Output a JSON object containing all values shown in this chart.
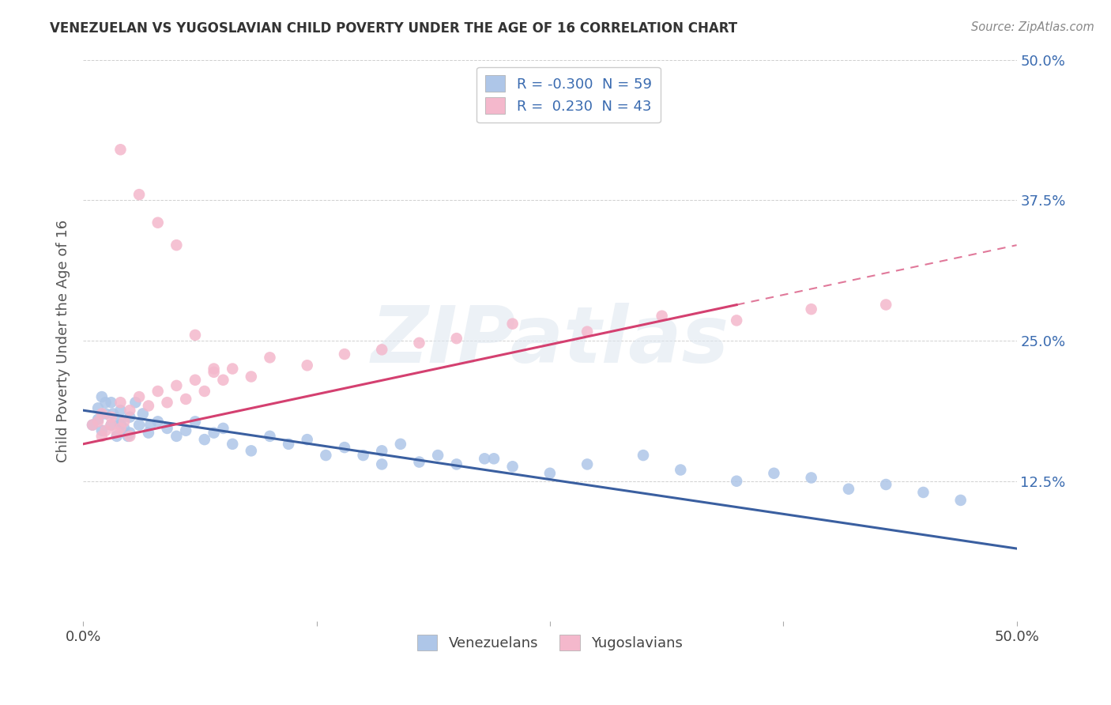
{
  "title": "VENEZUELAN VS YUGOSLAVIAN CHILD POVERTY UNDER THE AGE OF 16 CORRELATION CHART",
  "source": "Source: ZipAtlas.com",
  "ylabel": "Child Poverty Under the Age of 16",
  "xlim": [
    0.0,
    0.5
  ],
  "ylim": [
    0.0,
    0.5
  ],
  "xticks": [
    0.0,
    0.125,
    0.25,
    0.375,
    0.5
  ],
  "xtick_labels": [
    "0.0%",
    "",
    "",
    "",
    "50.0%"
  ],
  "yticks": [
    0.0,
    0.125,
    0.25,
    0.375,
    0.5
  ],
  "ytick_labels_right": [
    "",
    "12.5%",
    "25.0%",
    "37.5%",
    "50.0%"
  ],
  "venezuelan_R": -0.3,
  "venezuelan_N": 59,
  "yugoslavian_R": 0.23,
  "yugoslavian_N": 43,
  "venezuelan_color": "#aec6e8",
  "yugoslavian_color": "#f4b8cc",
  "trend_blue": "#3a5fa0",
  "trend_pink": "#d44070",
  "watermark": "ZIPatlas",
  "background_color": "#ffffff",
  "venezuelan_x": [
    0.005,
    0.008,
    0.01,
    0.012,
    0.015,
    0.018,
    0.02,
    0.022,
    0.025,
    0.008,
    0.012,
    0.016,
    0.02,
    0.024,
    0.028,
    0.032,
    0.036,
    0.01,
    0.015,
    0.02,
    0.025,
    0.03,
    0.035,
    0.04,
    0.045,
    0.05,
    0.055,
    0.06,
    0.065,
    0.07,
    0.075,
    0.08,
    0.09,
    0.1,
    0.11,
    0.12,
    0.13,
    0.14,
    0.15,
    0.16,
    0.17,
    0.18,
    0.19,
    0.2,
    0.215,
    0.23,
    0.25,
    0.27,
    0.3,
    0.32,
    0.35,
    0.37,
    0.39,
    0.41,
    0.43,
    0.45,
    0.47,
    0.22,
    0.16
  ],
  "venezuelan_y": [
    0.175,
    0.18,
    0.17,
    0.185,
    0.175,
    0.165,
    0.178,
    0.172,
    0.168,
    0.19,
    0.195,
    0.185,
    0.175,
    0.165,
    0.195,
    0.185,
    0.175,
    0.2,
    0.195,
    0.188,
    0.182,
    0.175,
    0.168,
    0.178,
    0.172,
    0.165,
    0.17,
    0.178,
    0.162,
    0.168,
    0.172,
    0.158,
    0.152,
    0.165,
    0.158,
    0.162,
    0.148,
    0.155,
    0.148,
    0.152,
    0.158,
    0.142,
    0.148,
    0.14,
    0.145,
    0.138,
    0.132,
    0.14,
    0.148,
    0.135,
    0.125,
    0.132,
    0.128,
    0.118,
    0.122,
    0.115,
    0.108,
    0.145,
    0.14
  ],
  "yugoslavian_x": [
    0.005,
    0.008,
    0.01,
    0.012,
    0.015,
    0.018,
    0.02,
    0.022,
    0.025,
    0.01,
    0.015,
    0.02,
    0.025,
    0.03,
    0.035,
    0.04,
    0.045,
    0.05,
    0.055,
    0.06,
    0.065,
    0.07,
    0.075,
    0.08,
    0.09,
    0.1,
    0.12,
    0.14,
    0.16,
    0.18,
    0.2,
    0.23,
    0.27,
    0.31,
    0.35,
    0.39,
    0.43,
    0.02,
    0.03,
    0.04,
    0.05,
    0.06,
    0.07
  ],
  "yugoslavian_y": [
    0.175,
    0.178,
    0.165,
    0.17,
    0.175,
    0.168,
    0.172,
    0.178,
    0.165,
    0.185,
    0.182,
    0.195,
    0.188,
    0.2,
    0.192,
    0.205,
    0.195,
    0.21,
    0.198,
    0.215,
    0.205,
    0.222,
    0.215,
    0.225,
    0.218,
    0.235,
    0.228,
    0.238,
    0.242,
    0.248,
    0.252,
    0.265,
    0.258,
    0.272,
    0.268,
    0.278,
    0.282,
    0.42,
    0.38,
    0.355,
    0.335,
    0.255,
    0.225
  ],
  "trend_ven_x0": 0.0,
  "trend_ven_y0": 0.188,
  "trend_ven_x1": 0.5,
  "trend_ven_y1": 0.065,
  "trend_yug_x0": 0.0,
  "trend_yug_y0": 0.158,
  "trend_yug_x1": 0.5,
  "trend_yug_y1": 0.335,
  "trend_yug_dash_x0": 0.35,
  "trend_yug_dash_x1": 0.5
}
